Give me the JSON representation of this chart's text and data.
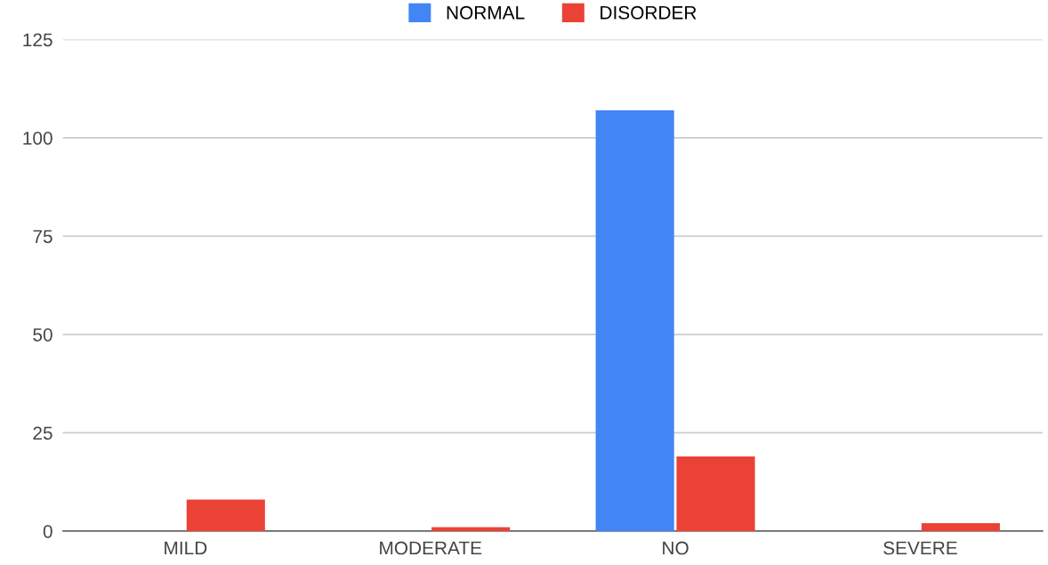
{
  "chart_data": {
    "type": "bar",
    "categories": [
      "MILD",
      "MODERATE",
      "NO",
      "SEVERE"
    ],
    "series": [
      {
        "name": "NORMAL",
        "color": "#4285f4",
        "values": [
          0,
          0,
          107,
          0
        ]
      },
      {
        "name": "DISORDER",
        "color": "#ea4335",
        "values": [
          8,
          1,
          19,
          2
        ]
      }
    ],
    "ylim": [
      0,
      125
    ],
    "yticks": [
      0,
      25,
      50,
      75,
      100,
      125
    ],
    "grid": "y",
    "legend": "top"
  }
}
